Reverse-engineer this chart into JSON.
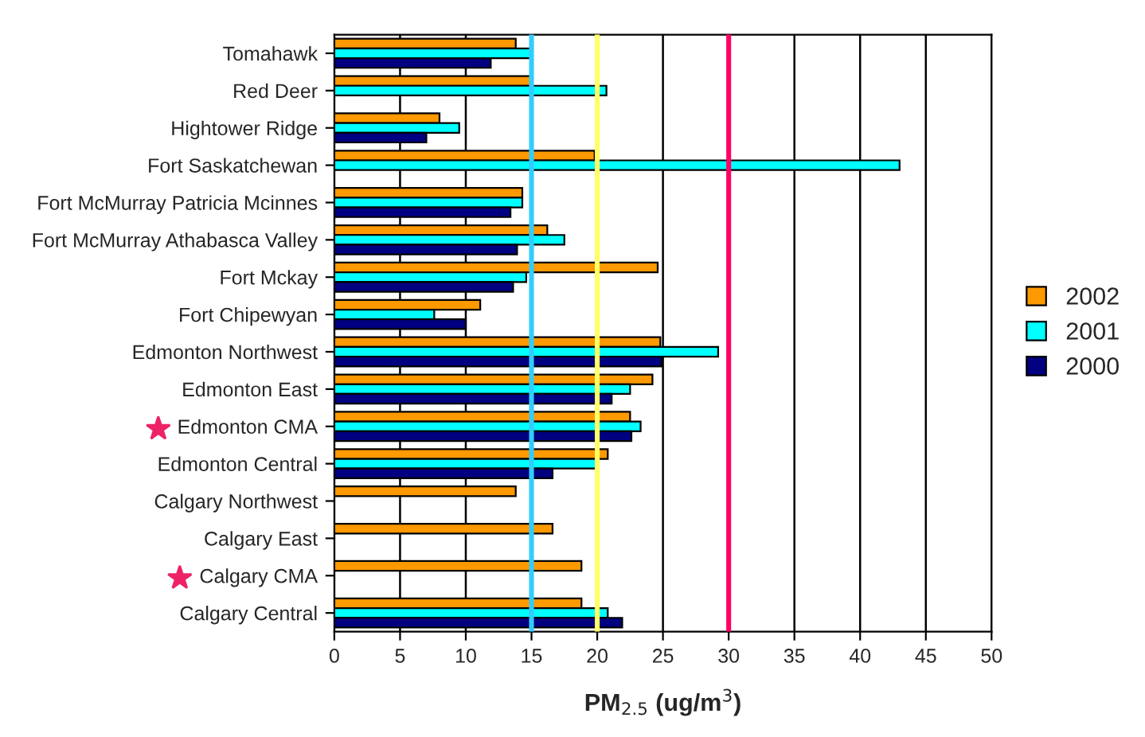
{
  "chart_data": {
    "type": "bar",
    "orientation": "horizontal",
    "xlabel": "PM$_{2.5}$ (ug/m$^{3}$)",
    "categories": [
      "Tomahawk",
      "Red Deer",
      "Hightower Ridge",
      "Fort Saskatchewan",
      "Fort McMurray Patricia Mcinnes",
      "Fort McMurray Athabasca Valley",
      "Fort Mckay",
      "Fort Chipewyan",
      "Edmonton Northwest",
      "Edmonton East",
      "Edmonton CMA",
      "Edmonton Central",
      "Calgary Northwest",
      "Calgary East",
      "Calgary CMA",
      "Calgary Central"
    ],
    "series": [
      {
        "name": "2002",
        "color": "#ff9900",
        "values": [
          13.8,
          15.0,
          8.0,
          19.8,
          14.3,
          16.2,
          24.6,
          11.1,
          24.8,
          24.2,
          22.5,
          20.8,
          13.8,
          16.6,
          18.8,
          18.8
        ]
      },
      {
        "name": "2001",
        "color": "#00ffff",
        "values": [
          15.0,
          20.7,
          9.5,
          43.0,
          14.3,
          17.5,
          14.6,
          7.6,
          29.2,
          22.5,
          23.3,
          19.9,
          null,
          null,
          null,
          20.8
        ]
      },
      {
        "name": "2000",
        "color": "#000080",
        "values": [
          11.9,
          null,
          7.0,
          null,
          13.4,
          13.9,
          13.6,
          10.0,
          24.9,
          21.1,
          22.6,
          16.6,
          null,
          null,
          null,
          21.9
        ]
      }
    ],
    "xlim": [
      0,
      50
    ],
    "xticks": [
      0,
      5,
      10,
      15,
      20,
      25,
      30,
      35,
      40,
      45,
      50
    ],
    "grid": "x",
    "legend": "right",
    "ref_lines": [
      {
        "axis": "x",
        "value": 15,
        "color": "#33ccff"
      },
      {
        "axis": "x",
        "value": 20,
        "color": "#ffff66"
      },
      {
        "axis": "x",
        "value": 30,
        "color": "#ff0066"
      }
    ]
  }
}
